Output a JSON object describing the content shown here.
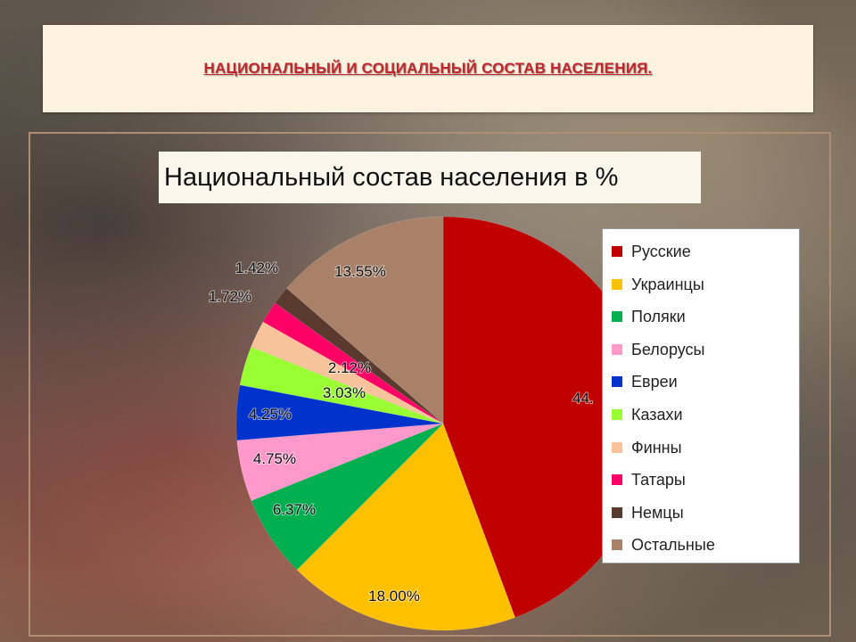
{
  "header": {
    "title": "НАЦИОНАЛЬНЫЙ И СОЦИАЛЬНЫЙ СОСТАВ НАСЕЛЕНИЯ."
  },
  "chart_data": {
    "type": "pie",
    "title": "Национальный состав населения в %",
    "legend_position": "right",
    "slices": [
      {
        "name": "Русские",
        "value": 44.0,
        "label": "44.",
        "color": "#c00000"
      },
      {
        "name": "Украинцы",
        "value": 18.0,
        "label": "18.00%",
        "color": "#ffc000"
      },
      {
        "name": "Поляки",
        "value": 6.37,
        "label": "6.37%",
        "color": "#00b050"
      },
      {
        "name": "Белорусы",
        "value": 4.75,
        "label": "4.75%",
        "color": "#ff99cc"
      },
      {
        "name": "Евреи",
        "value": 4.25,
        "label": "4.25%",
        "color": "#0033cc"
      },
      {
        "name": "Казахи",
        "value": 3.03,
        "label": "3.03%",
        "color": "#99ff33"
      },
      {
        "name": "Финны",
        "value": 2.12,
        "label": "2.12%",
        "color": "#f8c39a"
      },
      {
        "name": "Татары",
        "value": 1.72,
        "label": "1.72%",
        "color": "#ff0066"
      },
      {
        "name": "Немцы",
        "value": 1.42,
        "label": "1.42%",
        "color": "#5a3a2e"
      },
      {
        "name": "Остальные",
        "value": 13.55,
        "label": "13.55%",
        "color": "#a98068"
      }
    ]
  }
}
